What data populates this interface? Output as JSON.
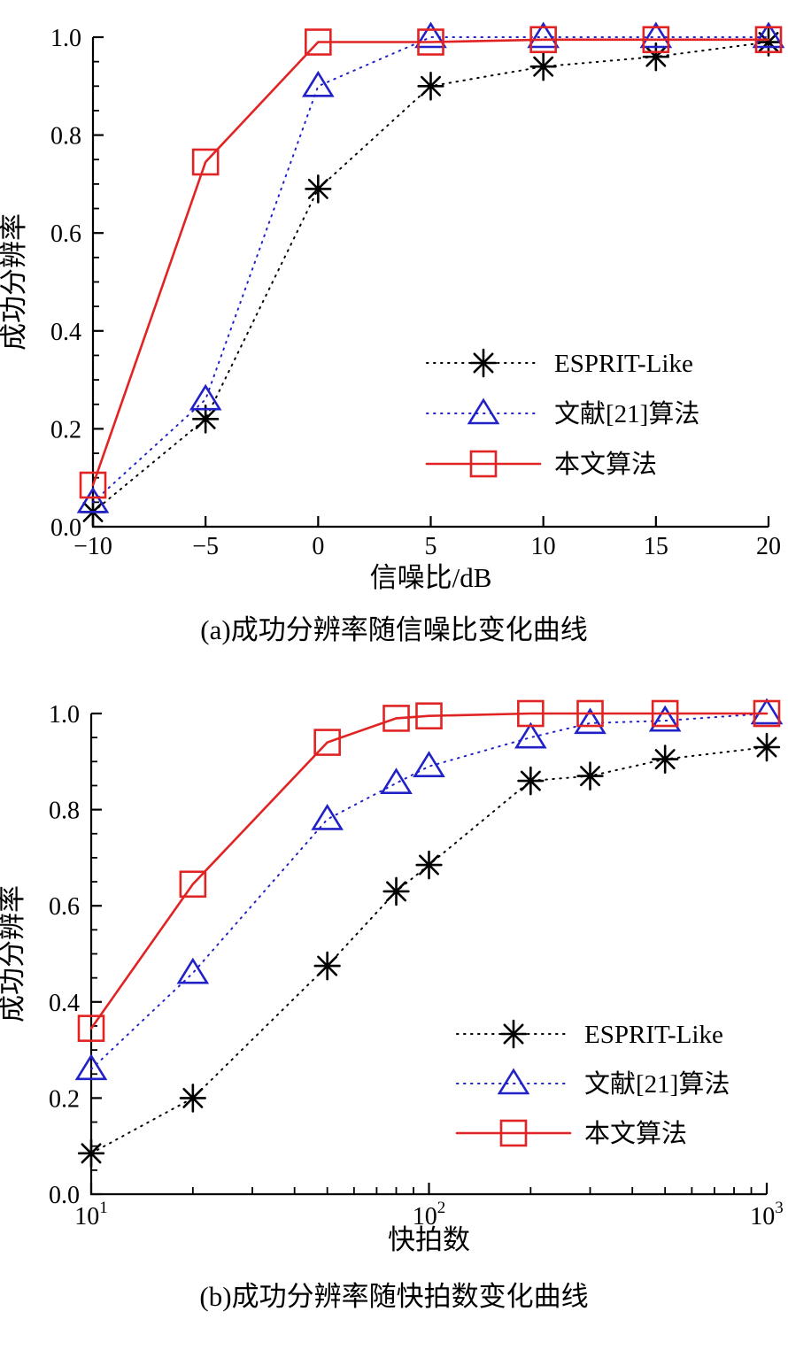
{
  "page": {
    "background": "#ffffff",
    "text_color": "#000000"
  },
  "chart_data": [
    {
      "type": "line",
      "panel": "a",
      "title": "(a)成功分辨率随信噪比变化曲线",
      "xlabel": "信噪比/dB",
      "ylabel": "成功分辨率",
      "x_scale": "linear",
      "xlim": [
        -10,
        20
      ],
      "ylim": [
        0.0,
        1.0
      ],
      "grid": false,
      "legend_position": "inside-lower-right",
      "x": [
        -10,
        -5,
        0,
        5,
        10,
        15,
        20
      ],
      "x_tick_labels": [
        "−10",
        "−5",
        "0",
        "5",
        "10",
        "15",
        "20"
      ],
      "y_ticks": [
        0.0,
        0.2,
        0.4,
        0.6,
        0.8,
        1.0
      ],
      "y_tick_labels": [
        "0.0",
        "0.2",
        "0.4",
        "0.6",
        "0.8",
        "1.0"
      ],
      "series": [
        {
          "name": "ESPRIT-Like",
          "color": "#000000",
          "marker": "asterisk",
          "line_style": "dotted",
          "values": [
            0.03,
            0.22,
            0.69,
            0.9,
            0.94,
            0.96,
            0.99
          ]
        },
        {
          "name": "文献[21]算法",
          "color": "#2121c8",
          "marker": "triangle",
          "line_style": "dotted",
          "values": [
            0.05,
            0.26,
            0.9,
            1.0,
            1.0,
            1.0,
            1.0
          ]
        },
        {
          "name": "本文算法",
          "color": "#e12323",
          "marker": "square",
          "line_style": "solid",
          "values": [
            0.085,
            0.745,
            0.99,
            0.99,
            0.995,
            0.995,
            0.995
          ]
        }
      ]
    },
    {
      "type": "line",
      "panel": "b",
      "title": "(b)成功分辨率随快拍数变化曲线",
      "xlabel": "快拍数",
      "ylabel": "成功分辨率",
      "x_scale": "log",
      "xlim": [
        10,
        1000
      ],
      "ylim": [
        0.0,
        1.0
      ],
      "grid": false,
      "legend_position": "inside-lower-right",
      "x": [
        10,
        20,
        50,
        80,
        100,
        200,
        300,
        500,
        1000
      ],
      "x_major_ticks": [
        {
          "value": 10,
          "label_base": "10",
          "label_exp": "1"
        },
        {
          "value": 100,
          "label_base": "10",
          "label_exp": "2"
        },
        {
          "value": 1000,
          "label_base": "10",
          "label_exp": "3"
        }
      ],
      "y_ticks": [
        0.0,
        0.2,
        0.4,
        0.6,
        0.8,
        1.0
      ],
      "y_tick_labels": [
        "0.0",
        "0.2",
        "0.4",
        "0.6",
        "0.8",
        "1.0"
      ],
      "series": [
        {
          "name": "ESPRIT-Like",
          "color": "#000000",
          "marker": "asterisk",
          "line_style": "dotted",
          "values": [
            0.085,
            0.2,
            0.475,
            0.63,
            0.685,
            0.86,
            0.87,
            0.905,
            0.93
          ]
        },
        {
          "name": "文献[21]算法",
          "color": "#2121c8",
          "marker": "triangle",
          "line_style": "dotted",
          "values": [
            0.26,
            0.46,
            0.78,
            0.855,
            0.89,
            0.95,
            0.98,
            0.985,
            1.0
          ]
        },
        {
          "name": "本文算法",
          "color": "#e12323",
          "marker": "square",
          "line_style": "solid",
          "values": [
            0.345,
            0.645,
            0.94,
            0.99,
            0.995,
            1.0,
            1.0,
            1.0,
            1.0
          ]
        }
      ]
    }
  ]
}
